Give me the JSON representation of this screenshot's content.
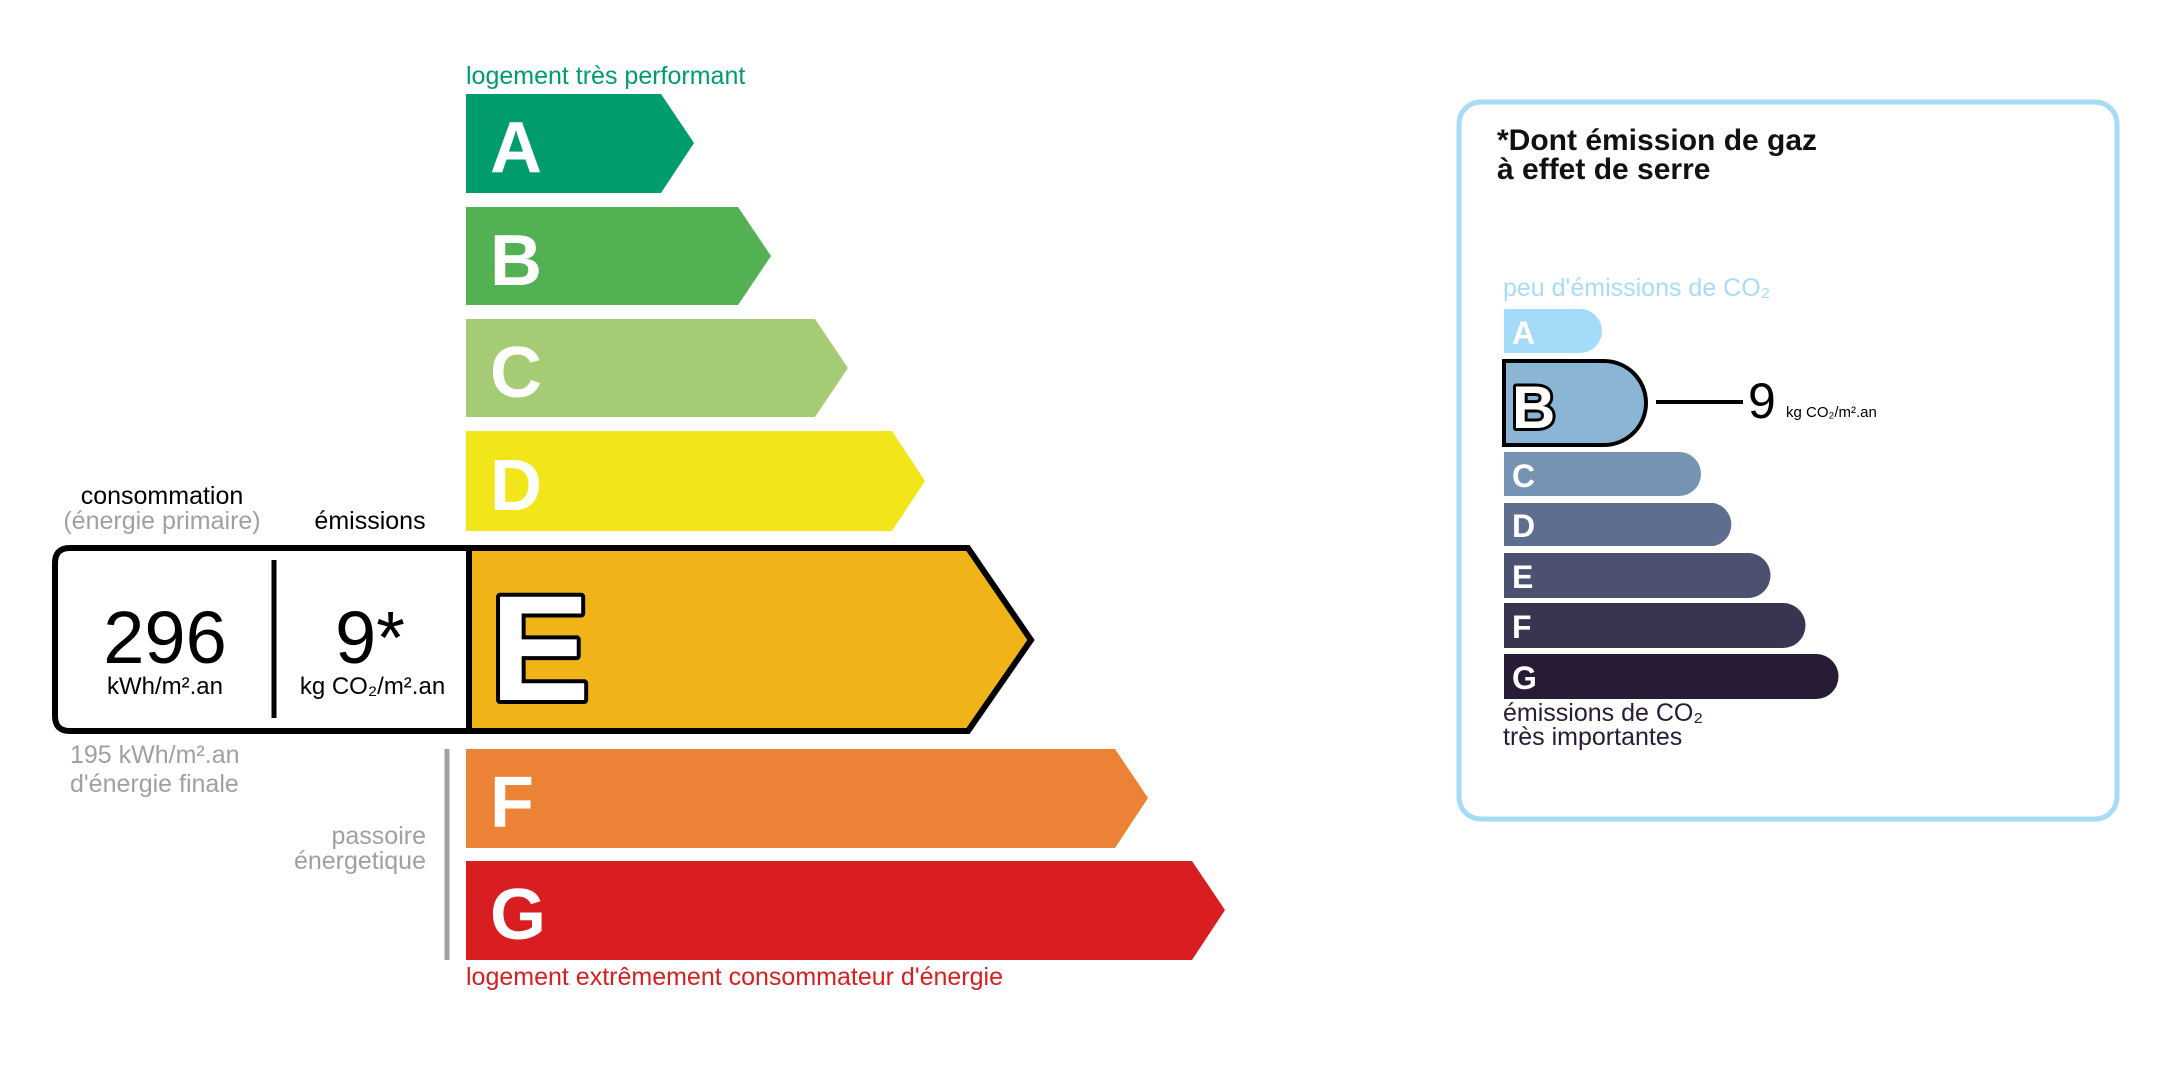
{
  "energy": {
    "top_label": "logement très performant",
    "bottom_label": "logement extrêmement consommateur d'énergie",
    "classes": [
      {
        "letter": "A",
        "color": "#009c6d"
      },
      {
        "letter": "B",
        "color": "#52b153"
      },
      {
        "letter": "C",
        "color": "#a5cc74"
      },
      {
        "letter": "D",
        "color": "#f2e61b"
      },
      {
        "letter": "E",
        "color": "#f0b418"
      },
      {
        "letter": "F",
        "color": "#eb8235"
      },
      {
        "letter": "G",
        "color": "#d81e20"
      }
    ],
    "current_class": "E",
    "consumption_label": "consommation",
    "consumption_sublabel": "(énergie primaire)",
    "emissions_label": "émissions",
    "consumption_value": "296",
    "consumption_unit": "kWh/m².an",
    "emissions_value": "9*",
    "emissions_unit": "kg CO₂/m².an",
    "final_energy_line1": "195 kWh/m².an",
    "final_energy_line2": "d'énergie finale",
    "passoire_line1": "passoire",
    "passoire_line2": "énergetique"
  },
  "ges": {
    "title_line1": "*Dont émission de gaz",
    "title_line2": "à effet de serre",
    "top_label": "peu d'émissions de CO₂",
    "bottom_line1": "émissions de CO₂",
    "bottom_line2": "très importantes",
    "border_color": "#a6dcf5",
    "classes": [
      {
        "letter": "A",
        "color": "#a3dbf8"
      },
      {
        "letter": "B",
        "color": "#8bb5d5"
      },
      {
        "letter": "C",
        "color": "#7594b3"
      },
      {
        "letter": "D",
        "color": "#5f6e8f"
      },
      {
        "letter": "E",
        "color": "#4d5170"
      },
      {
        "letter": "F",
        "color": "#393551"
      },
      {
        "letter": "G",
        "color": "#281b35"
      }
    ],
    "current_class": "B",
    "value": "9",
    "unit": "kg CO₂/m².an"
  }
}
